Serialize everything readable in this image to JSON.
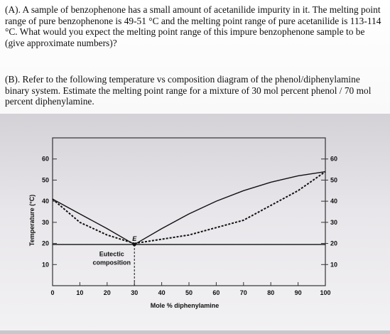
{
  "question_a": {
    "text": "(A). A sample of benzophenone has a small amount of acetanilide impurity in it. The melting point range of pure benzophenone is 49-51 °C and the melting point range of pure acetanilide is 113-114 °C. What would you expect the melting point range of this impure benzophenone sample to be (give approximate numbers)?"
  },
  "question_b": {
    "text": "(B). Refer to the following temperature vs composition diagram of the phenol/diphenylamine binary system. Estimate the melting point range for a mixture of 30 mol percent phenol / 70 mol percent diphenylamine."
  },
  "chart_data": {
    "type": "line",
    "xlabel": "Mole % diphenylamine",
    "ylabel": "Temperature (°C)",
    "xlim": [
      0,
      100
    ],
    "ylim": [
      0,
      70
    ],
    "x_ticks": [
      "0",
      "10",
      "20",
      "30",
      "40",
      "50",
      "60",
      "70",
      "80",
      "90",
      "100"
    ],
    "y_ticks_left": [
      "10",
      "20",
      "30",
      "40",
      "50",
      "60"
    ],
    "y_ticks_right": [
      "10",
      "20",
      "30",
      "40",
      "50",
      "60"
    ],
    "series": [
      {
        "role": "liquidus-phenol",
        "style": "solid",
        "x": [
          0,
          10,
          20,
          30
        ],
        "y": [
          41,
          34,
          27,
          19.5
        ]
      },
      {
        "role": "liquidus-diphenylamine",
        "style": "solid",
        "x": [
          30,
          40,
          50,
          60,
          70,
          80,
          90,
          100
        ],
        "y": [
          19.5,
          27,
          34,
          40,
          45,
          49,
          52,
          54
        ]
      },
      {
        "role": "solidus-phenol",
        "style": "dashed",
        "x": [
          0,
          10,
          20,
          30
        ],
        "y": [
          41,
          30,
          24,
          20
        ]
      },
      {
        "role": "solidus-diphenylamine",
        "style": "dashed",
        "x": [
          30,
          50,
          70,
          90,
          100
        ],
        "y": [
          20,
          24,
          31,
          45,
          54
        ]
      },
      {
        "role": "eutectic-line",
        "style": "solid",
        "x": [
          0,
          100
        ],
        "y": [
          19.5,
          19.5
        ]
      }
    ],
    "annotations": [
      {
        "text": "E",
        "x": 30,
        "y": 19.5
      },
      {
        "text": "Eutectic",
        "x": 30,
        "y": 15
      },
      {
        "text": "composition",
        "x": 30,
        "y": 11
      }
    ],
    "grid": false
  }
}
